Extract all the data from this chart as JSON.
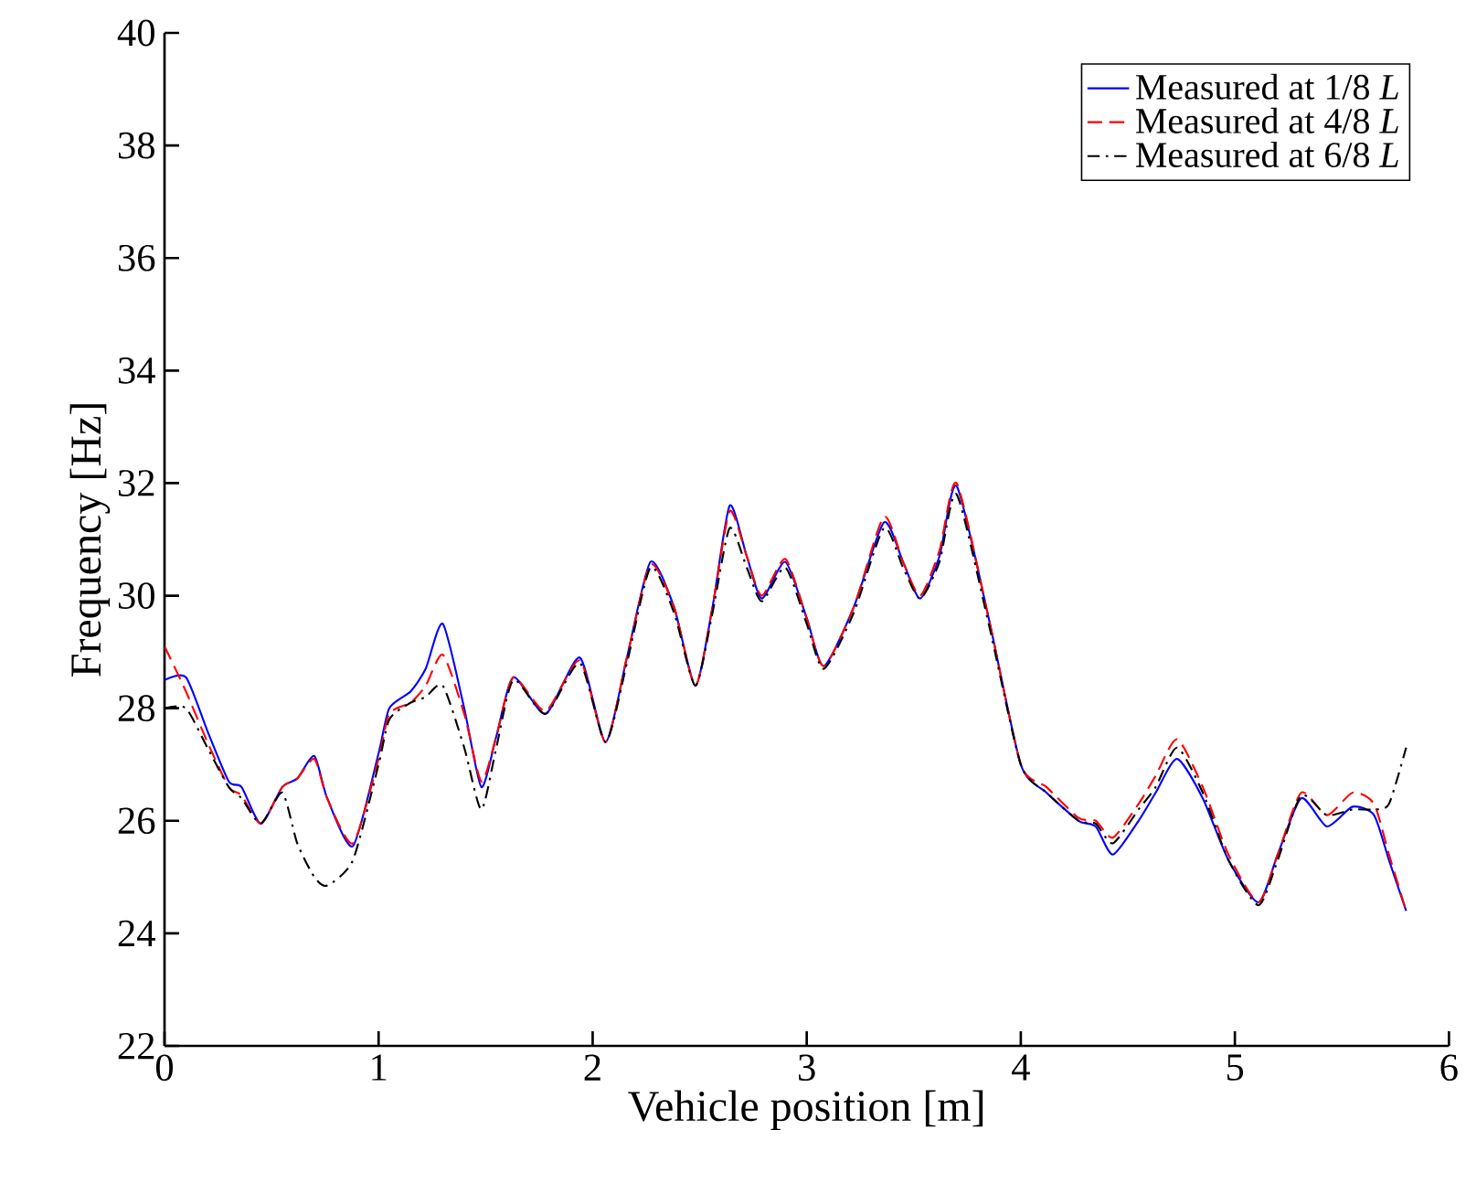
{
  "chart_data": {
    "type": "line",
    "xlabel": "Vehicle position [m]",
    "ylabel": "Frequency  [Hz]",
    "x": [
      0,
      0.1,
      0.2,
      0.3,
      0.36,
      0.45,
      0.55,
      0.62,
      0.7,
      0.76,
      0.88,
      1.0,
      1.05,
      1.15,
      1.22,
      1.3,
      1.4,
      1.48,
      1.55,
      1.63,
      1.78,
      1.94,
      2.06,
      2.16,
      2.27,
      2.38,
      2.48,
      2.56,
      2.64,
      2.72,
      2.79,
      2.9,
      3.0,
      3.08,
      3.22,
      3.36,
      3.45,
      3.53,
      3.62,
      3.7,
      3.85,
      4.0,
      4.12,
      4.27,
      4.35,
      4.43,
      4.55,
      4.63,
      4.73,
      4.85,
      4.97,
      5.11,
      5.2,
      5.31,
      5.43,
      5.55,
      5.65,
      5.72,
      5.8
    ],
    "series": [
      {
        "name": "Measured at 1/8 *L*",
        "color": "#0000ff",
        "line_style": "solid",
        "values": [
          28.5,
          28.55,
          27.6,
          26.7,
          26.6,
          25.95,
          26.6,
          26.75,
          27.15,
          26.4,
          25.55,
          27.2,
          28.0,
          28.3,
          28.7,
          29.5,
          28.0,
          26.6,
          27.5,
          28.55,
          27.9,
          28.9,
          27.4,
          28.9,
          30.6,
          29.8,
          28.4,
          29.8,
          31.6,
          30.7,
          29.95,
          30.6,
          29.6,
          28.75,
          29.8,
          31.3,
          30.6,
          29.95,
          30.7,
          31.95,
          29.6,
          27.0,
          26.5,
          26.0,
          25.9,
          25.4,
          26.0,
          26.5,
          27.1,
          26.4,
          25.3,
          24.55,
          25.4,
          26.4,
          25.9,
          26.25,
          26.1,
          25.3,
          24.4
        ]
      },
      {
        "name": "Measured at 4/8 *L*",
        "color": "#ff0000",
        "line_style": "dashed",
        "values": [
          29.1,
          28.3,
          27.4,
          26.6,
          26.45,
          25.95,
          26.6,
          26.75,
          27.1,
          26.4,
          25.6,
          27.1,
          27.9,
          28.1,
          28.4,
          28.95,
          27.9,
          26.7,
          27.5,
          28.55,
          27.95,
          28.85,
          27.4,
          28.9,
          30.55,
          29.8,
          28.4,
          29.8,
          31.5,
          30.7,
          30.0,
          30.65,
          29.6,
          28.75,
          29.8,
          31.4,
          30.6,
          30.0,
          30.8,
          32.0,
          29.6,
          27.0,
          26.6,
          26.05,
          26.0,
          25.7,
          26.3,
          26.8,
          27.45,
          26.6,
          25.4,
          24.55,
          25.4,
          26.5,
          26.1,
          26.5,
          26.3,
          25.4,
          24.4
        ]
      },
      {
        "name": "Measured at 6/8 *L*",
        "color": "#000000",
        "line_style": "dashdot",
        "values": [
          28.0,
          28.0,
          27.3,
          26.6,
          26.4,
          25.95,
          26.5,
          25.6,
          25.0,
          24.85,
          25.3,
          27.0,
          27.8,
          28.1,
          28.2,
          28.4,
          27.3,
          26.2,
          27.3,
          28.5,
          27.9,
          28.8,
          27.4,
          28.8,
          30.5,
          29.7,
          28.4,
          29.7,
          31.2,
          30.5,
          29.9,
          30.5,
          29.5,
          28.7,
          29.7,
          31.2,
          30.5,
          29.95,
          30.6,
          31.8,
          29.5,
          27.0,
          26.5,
          26.0,
          25.95,
          25.6,
          26.2,
          26.6,
          27.3,
          26.5,
          25.3,
          24.5,
          25.3,
          26.45,
          26.1,
          26.2,
          26.2,
          26.3,
          27.3
        ]
      }
    ],
    "xlim": [
      0,
      6
    ],
    "ylim": [
      22,
      40
    ],
    "xticks": [
      0,
      1,
      2,
      3,
      4,
      5,
      6
    ],
    "yticks": [
      22,
      24,
      26,
      28,
      30,
      32,
      34,
      36,
      38,
      40
    ],
    "grid": false,
    "legend": "top right",
    "marker": "none"
  }
}
